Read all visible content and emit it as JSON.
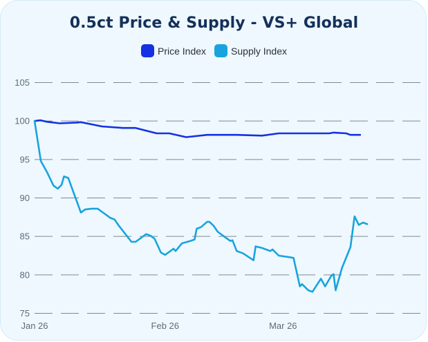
{
  "chart_data": {
    "type": "line",
    "title": "0.5ct Price & Supply - VS+ Global",
    "xlabel": "",
    "ylabel": "",
    "ylim": [
      75,
      105
    ],
    "y_ticks": [
      "75",
      "80",
      "85",
      "90",
      "95",
      "100",
      "105"
    ],
    "x_range_days": [
      0,
      74
    ],
    "x_ticks": [
      {
        "label": "Jan 26",
        "day": 0
      },
      {
        "label": "Feb 26",
        "day": 31
      },
      {
        "label": "Mar 26",
        "day": 59
      }
    ],
    "grid": "dashed horizontal",
    "legend_position": "top",
    "series": [
      {
        "name": "Price Index",
        "color": "#1531e3",
        "points": [
          [
            0,
            100
          ],
          [
            1.4,
            100.1
          ],
          [
            3,
            99.9
          ],
          [
            6,
            99.7
          ],
          [
            10,
            99.8
          ],
          [
            11,
            99.85
          ],
          [
            16,
            99.3
          ],
          [
            21,
            99.1
          ],
          [
            24,
            99.1
          ],
          [
            29,
            98.4
          ],
          [
            32,
            98.4
          ],
          [
            36,
            97.9
          ],
          [
            41,
            98.2
          ],
          [
            48,
            98.2
          ],
          [
            54,
            98.1
          ],
          [
            58,
            98.4
          ],
          [
            66,
            98.4
          ],
          [
            70,
            98.4
          ],
          [
            71,
            98.5
          ],
          [
            74,
            98.4
          ],
          [
            75,
            98.2
          ],
          [
            77.3,
            98.2
          ]
        ]
      },
      {
        "name": "Supply Index",
        "color": "#18a3de",
        "points": [
          [
            0,
            100
          ],
          [
            1.5,
            94.8
          ],
          [
            3,
            93.3
          ],
          [
            4.5,
            91.6
          ],
          [
            5.5,
            91.2
          ],
          [
            6.4,
            91.7
          ],
          [
            7,
            92.8
          ],
          [
            8,
            92.6
          ],
          [
            11,
            88.1
          ],
          [
            12,
            88.5
          ],
          [
            13.5,
            88.6
          ],
          [
            15,
            88.6
          ],
          [
            16,
            88.2
          ],
          [
            18,
            87.4
          ],
          [
            19,
            87.2
          ],
          [
            20,
            86.4
          ],
          [
            23,
            84.3
          ],
          [
            24,
            84.3
          ],
          [
            26.5,
            85.3
          ],
          [
            27.5,
            85.1
          ],
          [
            28.5,
            84.7
          ],
          [
            30,
            82.9
          ],
          [
            31,
            82.6
          ],
          [
            33,
            83.4
          ],
          [
            33.5,
            83.1
          ],
          [
            35,
            84.1
          ],
          [
            37,
            84.4
          ],
          [
            38,
            84.6
          ],
          [
            38.5,
            86.0
          ],
          [
            39.5,
            86.2
          ],
          [
            41,
            86.9
          ],
          [
            41.5,
            86.9
          ],
          [
            42.5,
            86.4
          ],
          [
            43.5,
            85.6
          ],
          [
            45.5,
            84.8
          ],
          [
            46.5,
            84.4
          ],
          [
            47,
            84.5
          ],
          [
            48,
            83.1
          ],
          [
            49.5,
            82.8
          ],
          [
            52,
            81.9
          ],
          [
            52.5,
            83.7
          ],
          [
            54,
            83.5
          ],
          [
            55,
            83.3
          ],
          [
            56,
            83.1
          ],
          [
            56.5,
            83.3
          ],
          [
            58,
            82.5
          ],
          [
            60.5,
            82.3
          ],
          [
            61.5,
            82.2
          ],
          [
            63,
            78.5
          ],
          [
            63.5,
            78.8
          ],
          [
            65,
            78.0
          ],
          [
            66,
            77.8
          ],
          [
            68,
            79.5
          ],
          [
            69,
            78.5
          ],
          [
            70.5,
            79.9
          ],
          [
            71,
            80.1
          ],
          [
            71.5,
            78.0
          ],
          [
            73,
            80.9
          ],
          [
            75,
            83.6
          ],
          [
            76,
            87.6
          ],
          [
            77,
            86.5
          ],
          [
            78,
            86.8
          ],
          [
            79,
            86.6
          ]
        ]
      }
    ]
  }
}
